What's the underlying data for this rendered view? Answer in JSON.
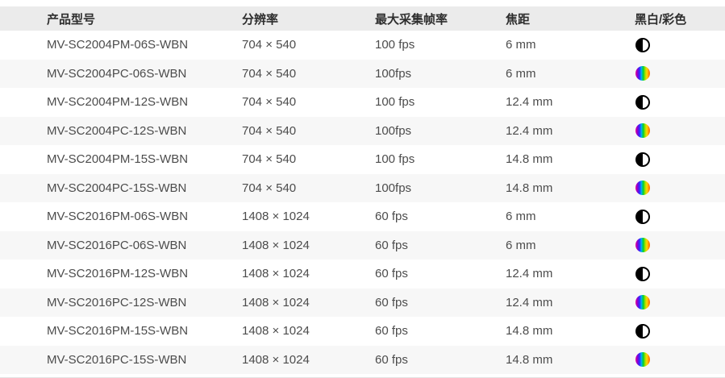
{
  "colors": {
    "header_bg": "#ebebeb",
    "stripe_bg": "#f7f7f7",
    "row_bg": "#ffffff",
    "header_text": "#2e2e2e",
    "body_text": "#4c4c4c",
    "bottom_divider": "#e3e3e3",
    "mono_icon_black": "#000000"
  },
  "table": {
    "columns": [
      "产品型号",
      "分辨率",
      "最大采集帧率",
      "焦距",
      "黑白/彩色"
    ],
    "rows": [
      {
        "model": "MV-SC2004PM-06S-WBN",
        "resolution": "704 × 540",
        "max_frame_rate": "100 fps",
        "focal_length": "6 mm",
        "sensor": "mono"
      },
      {
        "model": "MV-SC2004PC-06S-WBN",
        "resolution": "704 × 540",
        "max_frame_rate": "100fps",
        "focal_length": "6 mm",
        "sensor": "color"
      },
      {
        "model": "MV-SC2004PM-12S-WBN",
        "resolution": "704 × 540",
        "max_frame_rate": "100 fps",
        "focal_length": "12.4 mm",
        "sensor": "mono"
      },
      {
        "model": "MV-SC2004PC-12S-WBN",
        "resolution": "704 × 540",
        "max_frame_rate": "100fps",
        "focal_length": "12.4 mm",
        "sensor": "color"
      },
      {
        "model": "MV-SC2004PM-15S-WBN",
        "resolution": "704 × 540",
        "max_frame_rate": "100 fps",
        "focal_length": "14.8 mm",
        "sensor": "mono"
      },
      {
        "model": "MV-SC2004PC-15S-WBN",
        "resolution": "704 × 540",
        "max_frame_rate": "100fps",
        "focal_length": "14.8 mm",
        "sensor": "color"
      },
      {
        "model": "MV-SC2016PM-06S-WBN",
        "resolution": "1408 × 1024",
        "max_frame_rate": "60 fps",
        "focal_length": "6 mm",
        "sensor": "mono"
      },
      {
        "model": "MV-SC2016PC-06S-WBN",
        "resolution": "1408 × 1024",
        "max_frame_rate": "60 fps",
        "focal_length": "6 mm",
        "sensor": "color"
      },
      {
        "model": "MV-SC2016PM-12S-WBN",
        "resolution": "1408 × 1024",
        "max_frame_rate": "60 fps",
        "focal_length": "12.4 mm",
        "sensor": "mono"
      },
      {
        "model": "MV-SC2016PC-12S-WBN",
        "resolution": "1408 × 1024",
        "max_frame_rate": "60 fps",
        "focal_length": "12.4 mm",
        "sensor": "color"
      },
      {
        "model": "MV-SC2016PM-15S-WBN",
        "resolution": "1408 × 1024",
        "max_frame_rate": "60 fps",
        "focal_length": "14.8 mm",
        "sensor": "mono"
      },
      {
        "model": "MV-SC2016PC-15S-WBN",
        "resolution": "1408 × 1024",
        "max_frame_rate": "60 fps",
        "focal_length": "14.8 mm",
        "sensor": "color"
      }
    ],
    "sensor_icons": {
      "mono": "half-black-circle-icon",
      "color": "rainbow-circle-icon"
    }
  }
}
